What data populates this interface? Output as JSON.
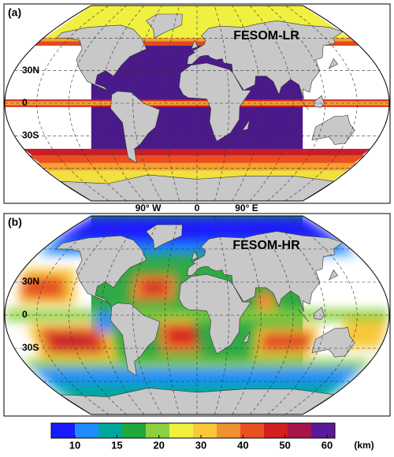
{
  "panels": [
    {
      "label": "(a)",
      "title": "FESOM-LR",
      "lat_labels": [
        "30N",
        "0",
        "30S"
      ]
    },
    {
      "label": "(b)",
      "title": "FESOM-HR",
      "lat_labels": [
        "30N",
        "0",
        "30S"
      ]
    }
  ],
  "lon_labels": [
    "90° W",
    "0",
    "90° E"
  ],
  "colorbar": {
    "ticks": [
      10,
      15,
      20,
      30,
      40,
      50,
      60
    ],
    "unit": "(km)",
    "colors": [
      "#1a1aff",
      "#1e8cff",
      "#00a89c",
      "#1fa83c",
      "#8cd040",
      "#f0f040",
      "#f8c838",
      "#f09030",
      "#e85020",
      "#d21e1e",
      "#a8144a",
      "#5a189a"
    ]
  }
}
